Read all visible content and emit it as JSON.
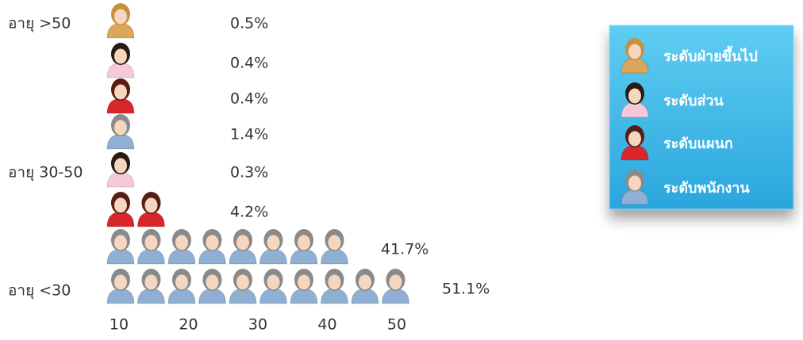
{
  "chart_data": {
    "type": "pictograph",
    "categories": [
      "อายุ >50",
      null,
      null,
      null,
      "อายุ 30-50",
      null,
      null,
      "อายุ <30"
    ],
    "series": [
      {
        "name": "ระดับฝ่ายขึ้นไป",
        "color": "#d9a85a",
        "values": [
          0.5,
          null,
          null,
          null,
          null,
          null,
          null,
          null
        ],
        "value_labels": [
          "0.5%",
          null,
          null,
          null,
          null,
          null,
          null,
          null
        ],
        "icons": [
          1,
          null,
          null,
          null,
          null,
          null,
          null,
          null
        ]
      },
      {
        "name": "ระดับส่วน",
        "color": "#f6c9da",
        "values": [
          null,
          0.4,
          null,
          null,
          0.3,
          null,
          null,
          null
        ],
        "value_labels": [
          null,
          "0.4%",
          null,
          null,
          "0.3%",
          null,
          null,
          null
        ],
        "icons": [
          null,
          1,
          null,
          null,
          1,
          null,
          null,
          null
        ]
      },
      {
        "name": "ระดับแผนก",
        "color": "#d9262b",
        "values": [
          null,
          null,
          0.4,
          null,
          null,
          4.2,
          null,
          null
        ],
        "value_labels": [
          null,
          null,
          "0.4%",
          null,
          null,
          "4.2%",
          null,
          null
        ],
        "icons": [
          null,
          null,
          1,
          null,
          null,
          2,
          null,
          null
        ]
      },
      {
        "name": "ระดับพนักงาน",
        "color": "#8fb0d2",
        "values": [
          null,
          null,
          null,
          1.4,
          null,
          null,
          41.7,
          51.1
        ],
        "value_labels": [
          null,
          null,
          null,
          "1.4%",
          null,
          null,
          "41.7%",
          "51.1%"
        ],
        "icons": [
          null,
          null,
          null,
          1,
          null,
          null,
          8,
          10
        ]
      }
    ],
    "xlim": [
      0,
      50
    ],
    "xticks": [
      10,
      20,
      30,
      40,
      50
    ]
  }
}
